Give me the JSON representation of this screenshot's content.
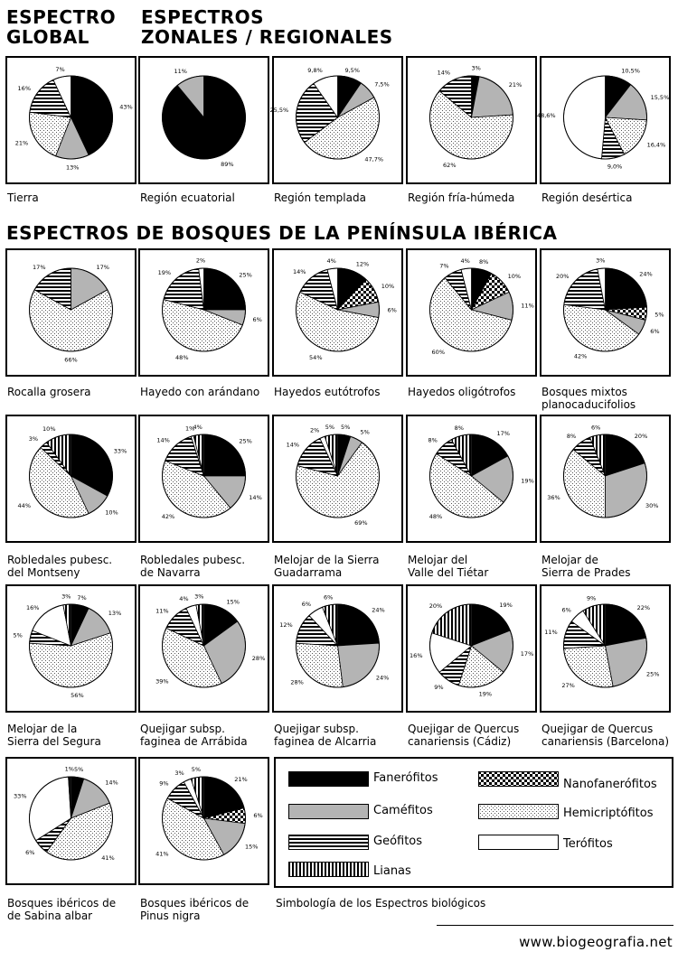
{
  "headings": {
    "global": "ESPECTRO\nGLOBAL",
    "zonal": "ESPECTROS\nZONALES / REGIONALES",
    "iberian": "ESPECTROS DE BOSQUES DE LA PENÍNSULA IBÉRICA"
  },
  "legend": {
    "items": [
      {
        "key": "fan",
        "label": "Fanerófitos",
        "pattern": "black"
      },
      {
        "key": "nano",
        "label": "Nanofanerófitos",
        "pattern": "checker"
      },
      {
        "key": "cam",
        "label": "Caméfitos",
        "pattern": "gray"
      },
      {
        "key": "hemi",
        "label": "Hemicriptófitos",
        "pattern": "dots"
      },
      {
        "key": "geo",
        "label": "Geófitos",
        "pattern": "hstripes"
      },
      {
        "key": "ter",
        "label": "Terófitos",
        "pattern": "white"
      },
      {
        "key": "lia",
        "label": "Lianas",
        "pattern": "vstripes"
      }
    ],
    "caption": "Simbología de los Espectros biológicos"
  },
  "site": "www.biogeografia.net",
  "colors": {
    "black": "#000000",
    "gray": "#b4b4b4",
    "white": "#ffffff",
    "border": "#000000"
  },
  "chart_data": [
    {
      "type": "pie",
      "caption": "Tierra",
      "slices": [
        {
          "cat": "fan",
          "value": 43,
          "label": "43%"
        },
        {
          "cat": "cam",
          "value": 13,
          "label": "13%"
        },
        {
          "cat": "hemi",
          "value": 21,
          "label": "21%"
        },
        {
          "cat": "geo",
          "value": 16,
          "label": "16%"
        },
        {
          "cat": "ter",
          "value": 7,
          "label": "7%"
        }
      ]
    },
    {
      "type": "pie",
      "caption": "Región ecuatorial",
      "slices": [
        {
          "cat": "fan",
          "value": 89,
          "label": "89%"
        },
        {
          "cat": "cam",
          "value": 11,
          "label": "11%"
        }
      ]
    },
    {
      "type": "pie",
      "caption": "Región templada",
      "slices": [
        {
          "cat": "fan",
          "value": 9.5,
          "label": "9,5%"
        },
        {
          "cat": "cam",
          "value": 7.5,
          "label": "7,5%"
        },
        {
          "cat": "hemi",
          "value": 47.7,
          "label": "47,7%"
        },
        {
          "cat": "geo",
          "value": 25.5,
          "label": "25,5%"
        },
        {
          "cat": "ter",
          "value": 9.8,
          "label": "9,8%"
        }
      ]
    },
    {
      "type": "pie",
      "caption": "Región fría-húmeda",
      "slices": [
        {
          "cat": "fan",
          "value": 3,
          "label": "3%"
        },
        {
          "cat": "cam",
          "value": 21,
          "label": "21%"
        },
        {
          "cat": "hemi",
          "value": 62,
          "label": "62%"
        },
        {
          "cat": "geo",
          "value": 14,
          "label": "14%"
        }
      ]
    },
    {
      "type": "pie",
      "caption": "Región desértica",
      "slices": [
        {
          "cat": "fan",
          "value": 10.5,
          "label": "10,5%"
        },
        {
          "cat": "cam",
          "value": 15.5,
          "label": "15,5%"
        },
        {
          "cat": "hemi",
          "value": 16.4,
          "label": "16,4%"
        },
        {
          "cat": "geo",
          "value": 9.0,
          "label": "9,0%"
        },
        {
          "cat": "ter",
          "value": 48.6,
          "label": "48,6%"
        }
      ]
    },
    {
      "type": "pie",
      "caption": "Rocalla grosera",
      "slices": [
        {
          "cat": "cam",
          "value": 17,
          "label": "17%"
        },
        {
          "cat": "hemi",
          "value": 66,
          "label": "66%"
        },
        {
          "cat": "geo",
          "value": 17,
          "label": "17%"
        }
      ]
    },
    {
      "type": "pie",
      "caption": "Hayedo con arándano",
      "slices": [
        {
          "cat": "fan",
          "value": 25,
          "label": "25%"
        },
        {
          "cat": "cam",
          "value": 6,
          "label": "6%"
        },
        {
          "cat": "hemi",
          "value": 48,
          "label": "48%"
        },
        {
          "cat": "geo",
          "value": 19,
          "label": "19%"
        },
        {
          "cat": "ter",
          "value": 2,
          "label": "2%"
        }
      ]
    },
    {
      "type": "pie",
      "caption": "Hayedos eutótrofos",
      "slices": [
        {
          "cat": "fan",
          "value": 12,
          "label": "12%"
        },
        {
          "cat": "nano",
          "value": 10,
          "label": "10%"
        },
        {
          "cat": "cam",
          "value": 6,
          "label": "6%"
        },
        {
          "cat": "hemi",
          "value": 54,
          "label": "54%"
        },
        {
          "cat": "geo",
          "value": 14,
          "label": "14%"
        },
        {
          "cat": "ter",
          "value": 4,
          "label": "4%"
        }
      ]
    },
    {
      "type": "pie",
      "caption": "Hayedos oligótrofos",
      "slices": [
        {
          "cat": "fan",
          "value": 8,
          "label": "8%"
        },
        {
          "cat": "nano",
          "value": 10,
          "label": "10%"
        },
        {
          "cat": "cam",
          "value": 11,
          "label": "11%"
        },
        {
          "cat": "hemi",
          "value": 60,
          "label": "60%"
        },
        {
          "cat": "geo",
          "value": 7,
          "label": "7%"
        },
        {
          "cat": "ter",
          "value": 4,
          "label": "4%"
        }
      ]
    },
    {
      "type": "pie",
      "caption": "Bosques mixtos\nplanocaducifolios",
      "slices": [
        {
          "cat": "fan",
          "value": 24,
          "label": "24%"
        },
        {
          "cat": "nano",
          "value": 5,
          "label": "5%"
        },
        {
          "cat": "cam",
          "value": 6,
          "label": "6%"
        },
        {
          "cat": "hemi",
          "value": 42,
          "label": "42%"
        },
        {
          "cat": "geo",
          "value": 20,
          "label": "20%"
        },
        {
          "cat": "ter",
          "value": 3,
          "label": "3%"
        }
      ]
    },
    {
      "type": "pie",
      "caption": "Robledales pubesc.\ndel Montseny",
      "slices": [
        {
          "cat": "fan",
          "value": 33,
          "label": "33%"
        },
        {
          "cat": "cam",
          "value": 10,
          "label": "10%"
        },
        {
          "cat": "hemi",
          "value": 44,
          "label": "44%"
        },
        {
          "cat": "geo",
          "value": 3,
          "label": "3%"
        },
        {
          "cat": "lia",
          "value": 10,
          "label": "10%"
        }
      ]
    },
    {
      "type": "pie",
      "caption": "Robledales pubesc.\nde Navarra",
      "slices": [
        {
          "cat": "fan",
          "value": 25,
          "label": "25%"
        },
        {
          "cat": "cam",
          "value": 14,
          "label": "14%"
        },
        {
          "cat": "hemi",
          "value": 42,
          "label": "42%"
        },
        {
          "cat": "geo",
          "value": 14,
          "label": "14%"
        },
        {
          "cat": "ter",
          "value": 1,
          "label": "1%"
        },
        {
          "cat": "lia",
          "value": 4,
          "label": "4%"
        }
      ]
    },
    {
      "type": "pie",
      "caption": "Melojar de la Sierra\nGuadarrama",
      "slices": [
        {
          "cat": "fan",
          "value": 5,
          "label": "5%"
        },
        {
          "cat": "cam",
          "value": 5,
          "label": "5%"
        },
        {
          "cat": "hemi",
          "value": 69,
          "label": "69%"
        },
        {
          "cat": "geo",
          "value": 14,
          "label": "14%"
        },
        {
          "cat": "ter",
          "value": 2,
          "label": "2%"
        },
        {
          "cat": "lia",
          "value": 5,
          "label": "5%"
        }
      ]
    },
    {
      "type": "pie",
      "caption": "Melojar del\nValle del Tiétar",
      "slices": [
        {
          "cat": "fan",
          "value": 17,
          "label": "17%"
        },
        {
          "cat": "cam",
          "value": 19,
          "label": "19%"
        },
        {
          "cat": "hemi",
          "value": 48,
          "label": "48%"
        },
        {
          "cat": "geo",
          "value": 8,
          "label": "8%"
        },
        {
          "cat": "lia",
          "value": 8,
          "label": "8%"
        }
      ]
    },
    {
      "type": "pie",
      "caption": "Melojar de\nSierra de Prades",
      "slices": [
        {
          "cat": "fan",
          "value": 20,
          "label": "20%"
        },
        {
          "cat": "cam",
          "value": 30,
          "label": "30%"
        },
        {
          "cat": "hemi",
          "value": 36,
          "label": "36%"
        },
        {
          "cat": "geo",
          "value": 8,
          "label": "8%"
        },
        {
          "cat": "lia",
          "value": 6,
          "label": "6%"
        }
      ]
    },
    {
      "type": "pie",
      "caption": "Melojar de la\nSierra del Segura",
      "slices": [
        {
          "cat": "fan",
          "value": 7,
          "label": "7%"
        },
        {
          "cat": "cam",
          "value": 13,
          "label": "13%"
        },
        {
          "cat": "hemi",
          "value": 56,
          "label": "56%"
        },
        {
          "cat": "geo",
          "value": 5,
          "label": "5%"
        },
        {
          "cat": "ter",
          "value": 16,
          "label": "16%"
        },
        {
          "cat": "lia",
          "value": 3,
          "label": "3%"
        }
      ]
    },
    {
      "type": "pie",
      "caption": "Quejigar subsp.\nfaginea de Arrábida",
      "slices": [
        {
          "cat": "fan",
          "value": 15,
          "label": "15%"
        },
        {
          "cat": "cam",
          "value": 28,
          "label": "28%"
        },
        {
          "cat": "hemi",
          "value": 39,
          "label": "39%"
        },
        {
          "cat": "geo",
          "value": 11,
          "label": "11%"
        },
        {
          "cat": "ter",
          "value": 4,
          "label": "4%"
        },
        {
          "cat": "lia",
          "value": 3,
          "label": "3%"
        }
      ]
    },
    {
      "type": "pie",
      "caption": "Quejigar subsp.\nfaginea de Alcarria",
      "slices": [
        {
          "cat": "fan",
          "value": 24,
          "label": "24%"
        },
        {
          "cat": "cam",
          "value": 24,
          "label": "24%"
        },
        {
          "cat": "hemi",
          "value": 28,
          "label": "28%"
        },
        {
          "cat": "geo",
          "value": 12,
          "label": "12%"
        },
        {
          "cat": "ter",
          "value": 6,
          "label": "6%"
        },
        {
          "cat": "lia",
          "value": 6,
          "label": "6%"
        }
      ]
    },
    {
      "type": "pie",
      "caption": "Quejigar de Quercus\ncanariensis (Cádiz)",
      "slices": [
        {
          "cat": "fan",
          "value": 19,
          "label": "19%"
        },
        {
          "cat": "cam",
          "value": 17,
          "label": "17%"
        },
        {
          "cat": "hemi",
          "value": 19,
          "label": "19%"
        },
        {
          "cat": "geo",
          "value": 9,
          "label": "9%"
        },
        {
          "cat": "ter",
          "value": 16,
          "label": "16%"
        },
        {
          "cat": "lia",
          "value": 20,
          "label": "20%"
        }
      ]
    },
    {
      "type": "pie",
      "caption": "Quejigar de Quercus\ncanariensis (Barcelona)",
      "slices": [
        {
          "cat": "fan",
          "value": 22,
          "label": "22%"
        },
        {
          "cat": "cam",
          "value": 25,
          "label": "25%"
        },
        {
          "cat": "hemi",
          "value": 27,
          "label": "27%"
        },
        {
          "cat": "geo",
          "value": 11,
          "label": "11%"
        },
        {
          "cat": "ter",
          "value": 6,
          "label": "6%"
        },
        {
          "cat": "lia",
          "value": 9,
          "label": "9%"
        }
      ]
    },
    {
      "type": "pie",
      "caption": "Bosques ibéricos de\nde Sabina albar",
      "slices": [
        {
          "cat": "fan",
          "value": 5,
          "label": "5%"
        },
        {
          "cat": "cam",
          "value": 14,
          "label": "14%"
        },
        {
          "cat": "hemi",
          "value": 41,
          "label": "41%"
        },
        {
          "cat": "geo",
          "value": 6,
          "label": "6%"
        },
        {
          "cat": "ter",
          "value": 33,
          "label": "33%"
        },
        {
          "cat": "lia",
          "value": 1,
          "label": "1%"
        }
      ]
    },
    {
      "type": "pie",
      "caption": "Bosques ibéricos de\nPinus nigra",
      "slices": [
        {
          "cat": "fan",
          "value": 21,
          "label": "21%"
        },
        {
          "cat": "nano",
          "value": 6,
          "label": "6%"
        },
        {
          "cat": "cam",
          "value": 15,
          "label": "15%"
        },
        {
          "cat": "hemi",
          "value": 41,
          "label": "41%"
        },
        {
          "cat": "geo",
          "value": 9,
          "label": "9%"
        },
        {
          "cat": "ter",
          "value": 3,
          "label": "3%"
        },
        {
          "cat": "lia",
          "value": 5,
          "label": "5%"
        }
      ]
    }
  ]
}
